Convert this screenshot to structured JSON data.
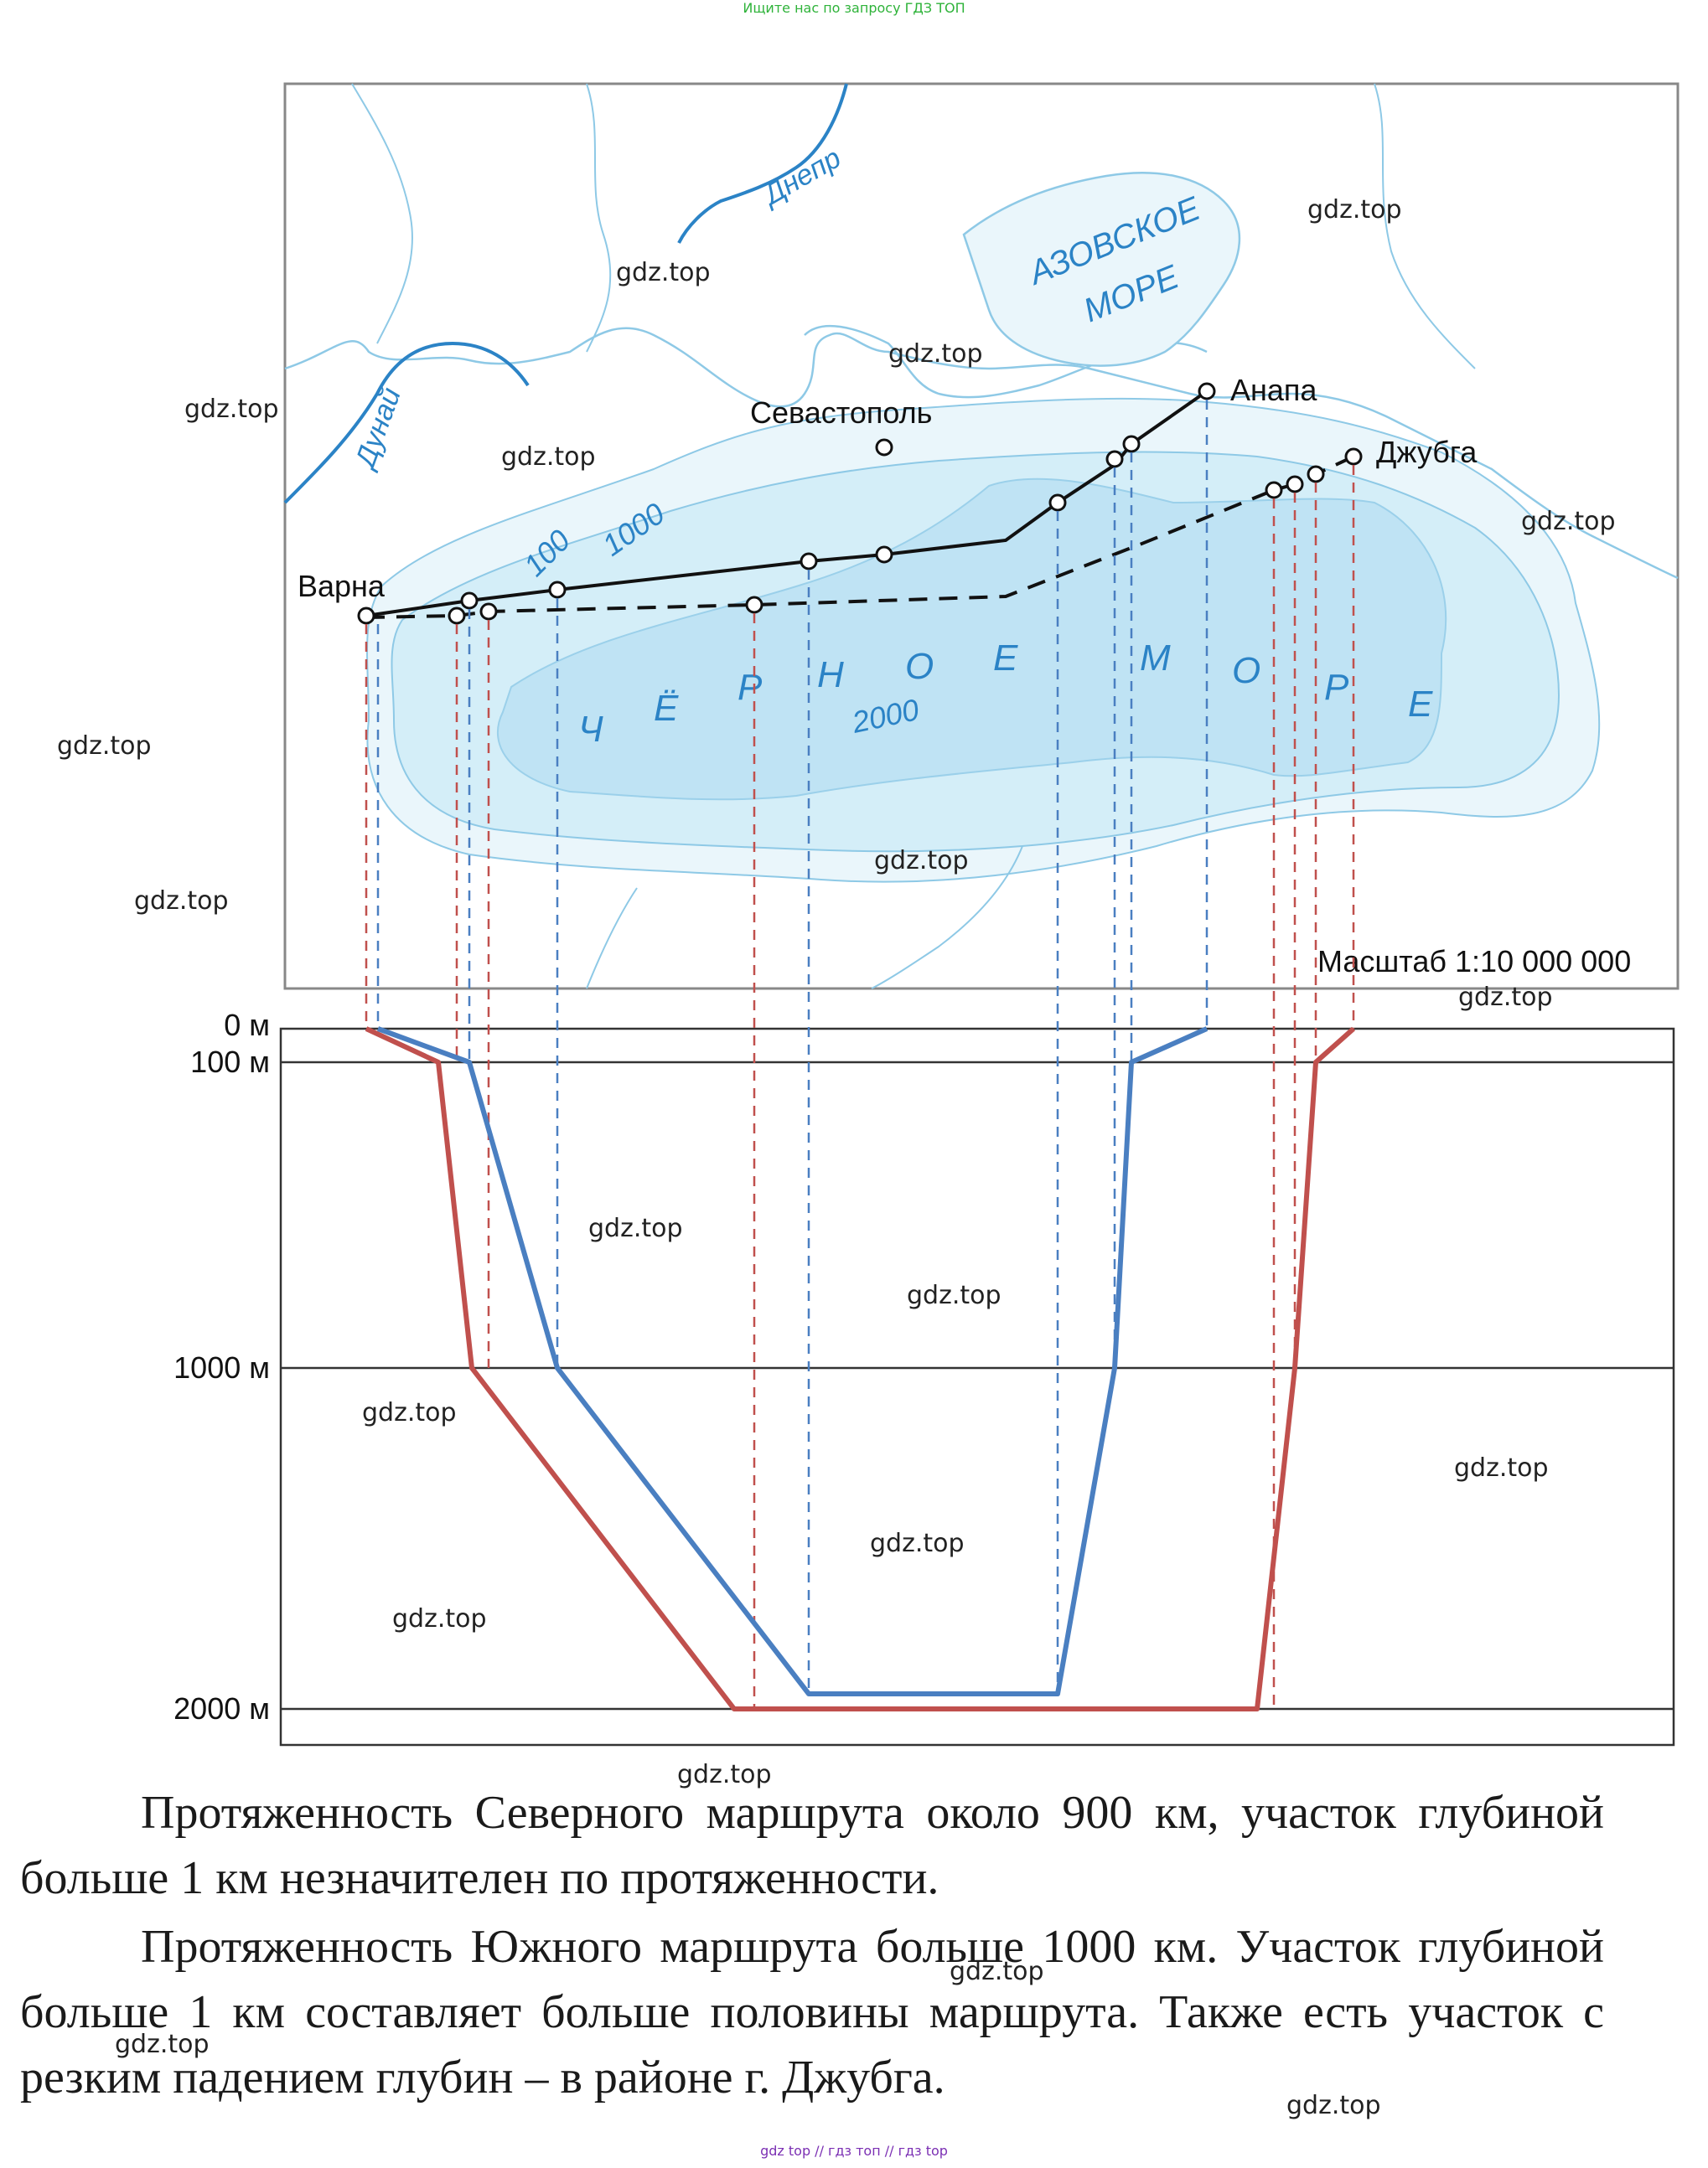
{
  "header_note": "Ищите нас по запросу ГДЗ ТОП",
  "footer_note": "gdz top // гдз топ // гдз top",
  "map": {
    "labels": {
      "dnepr": "Днепр",
      "dunai": "Дунай",
      "azov_line1": "АЗОВСКОЕ",
      "azov_line2": "МОРЕ",
      "black_sea_letters": [
        "Ч",
        "Ё",
        "Р",
        "Н",
        "О",
        "Е",
        "М",
        "О",
        "Р",
        "Е"
      ],
      "sevastopol": "Севастополь",
      "anapa": "Анапа",
      "dzhubga": "Джубга",
      "varna": "Варна",
      "isobath_100": "100",
      "isobath_1000": "1000",
      "isobath_2000": "2000",
      "scale": "Масштаб 1:10 000 000"
    }
  },
  "profile": {
    "depth_labels": [
      "0 м",
      "100 м",
      "1000 м",
      "2000 м"
    ],
    "depth_values_m": [
      0,
      100,
      1000,
      2000
    ],
    "north_route_color": "#4a7fc1",
    "south_route_color": "#c0504d"
  },
  "watermark": "gdz.top",
  "text": {
    "para1": "Протяженность Северного маршрута около 900 км, участок глубиной больше 1 км незначителен по протяженности.",
    "para2": "Протяженность Южного маршрута больше 1000 км. Участок глубиной больше 1 км составляет больше половины маршрута. Также есть участок с резким падением глубин – в районе г. Джубга."
  }
}
